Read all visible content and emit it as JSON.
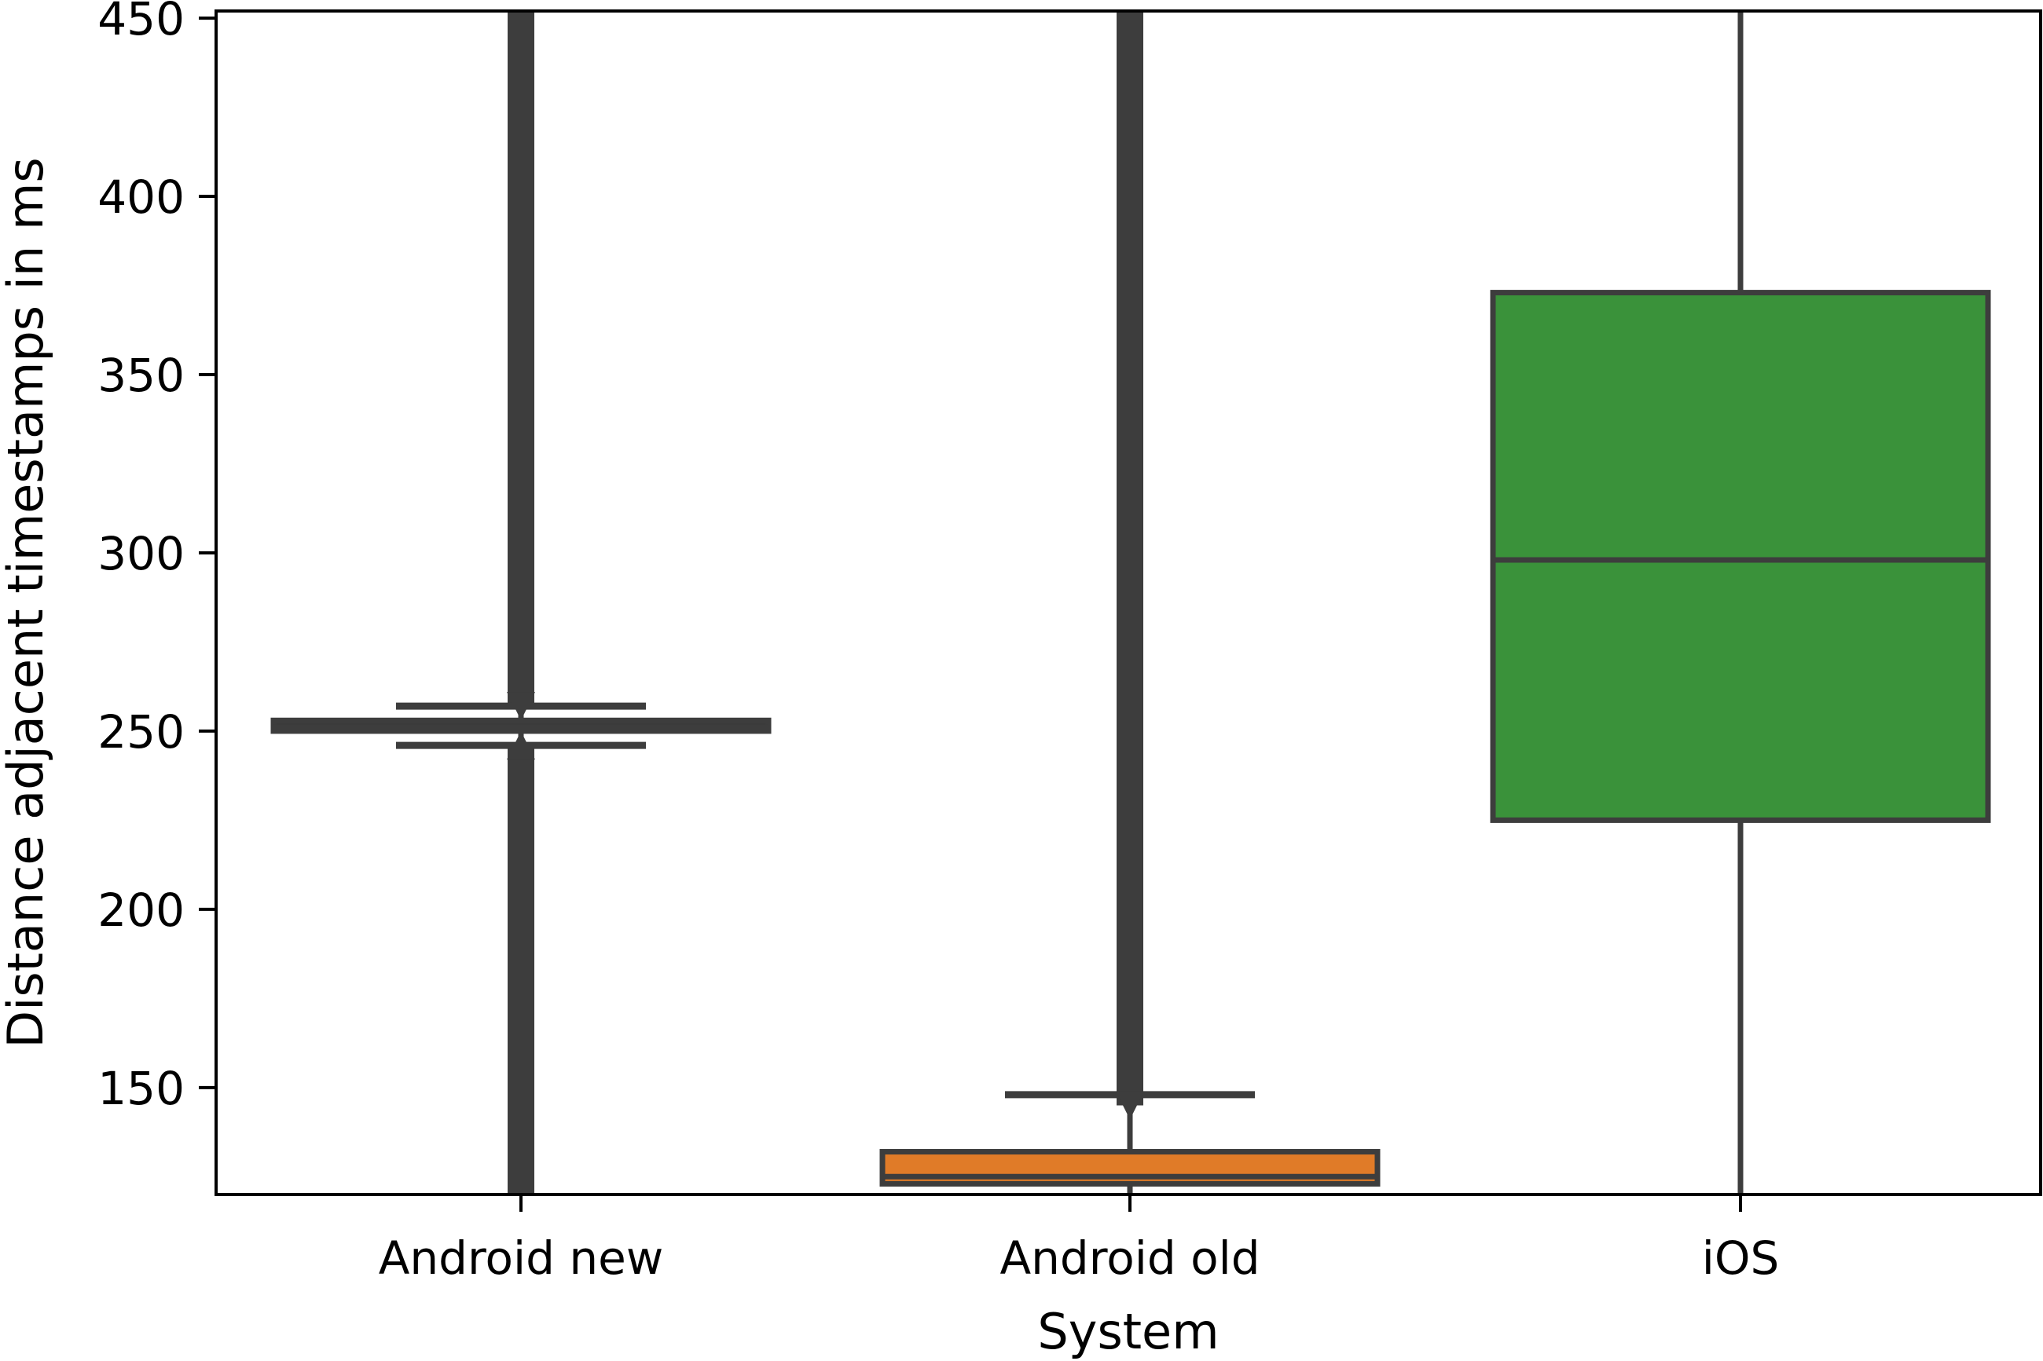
{
  "chart_data": {
    "type": "box",
    "xlabel": "System",
    "ylabel": "Distance adjacent timestamps in ms",
    "ylim": [
      120,
      452
    ],
    "yticks": [
      150,
      200,
      250,
      300,
      350,
      400,
      450
    ],
    "ytick_labels": [
      "150",
      "200",
      "250",
      "300",
      "350",
      "400",
      "450"
    ],
    "grid": false,
    "categories": [
      "Android new",
      "Android old",
      "iOS"
    ],
    "boxes": [
      {
        "name": "Android new",
        "color": "#3b3b3b",
        "q1": 250,
        "median": 251,
        "q3": 253,
        "whisker_low": 246,
        "whisker_high": 257,
        "outliers_low": [
          120,
          246
        ],
        "outliers_high": [
          257,
          452
        ]
      },
      {
        "name": "Android old",
        "color": "#e07b28",
        "q1": 123,
        "median": 125,
        "q3": 132,
        "whisker_low": 120,
        "whisker_high": 148,
        "outliers_low": [],
        "outliers_high": [
          145,
          452
        ]
      },
      {
        "name": "iOS",
        "color": "#3a923a",
        "q1": 225,
        "median": 298,
        "q3": 373,
        "whisker_low": 120,
        "whisker_high": 452,
        "outliers_low": [],
        "outliers_high": []
      }
    ]
  }
}
